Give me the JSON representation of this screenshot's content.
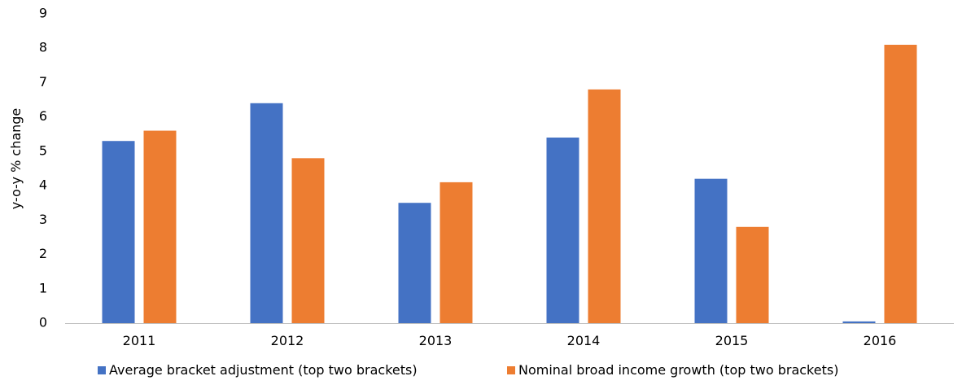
{
  "chart_data": {
    "type": "bar",
    "title": "",
    "xlabel": "",
    "ylabel": "y-o-y % change",
    "ylim": [
      0,
      9
    ],
    "yticks": [
      0,
      1,
      2,
      3,
      4,
      5,
      6,
      7,
      8,
      9
    ],
    "grid": false,
    "legend_position": "bottom",
    "categories": [
      "2011",
      "2012",
      "2013",
      "2014",
      "2015",
      "2016"
    ],
    "series": [
      {
        "name": "Average bracket adjustment (top two brackets)",
        "color": "#4472C4",
        "values": [
          5.3,
          6.4,
          3.5,
          5.4,
          4.2,
          0.05
        ]
      },
      {
        "name": "Nominal broad income growth (top two brackets)",
        "color": "#ED7D31",
        "values": [
          5.6,
          4.8,
          4.1,
          6.8,
          2.8,
          8.1
        ]
      }
    ]
  }
}
